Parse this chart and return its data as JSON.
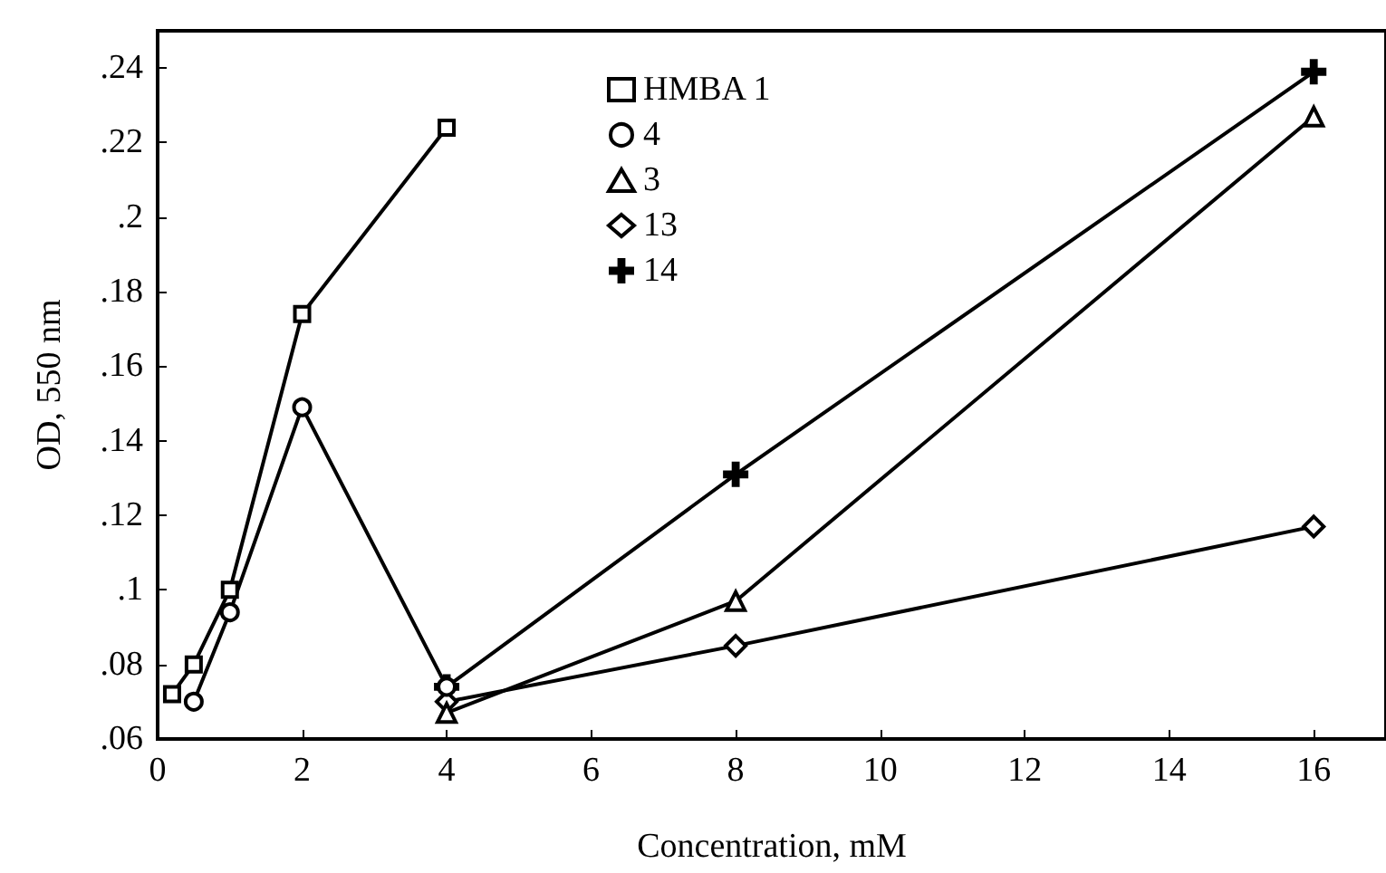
{
  "chart_data": {
    "type": "line",
    "xlabel": "Concentration, mM",
    "ylabel": "OD, 550 nm",
    "xlim": [
      0,
      17
    ],
    "xticks": [
      0,
      2,
      4,
      6,
      8,
      10,
      12,
      14,
      16
    ],
    "ylim": [
      0.06,
      0.25
    ],
    "yticks": [
      {
        "value": 0.06,
        "label": ".06"
      },
      {
        "value": 0.08,
        "label": ".08"
      },
      {
        "value": 0.1,
        "label": ".1"
      },
      {
        "value": 0.12,
        "label": ".12"
      },
      {
        "value": 0.14,
        "label": ".14"
      },
      {
        "value": 0.16,
        "label": ".16"
      },
      {
        "value": 0.18,
        "label": ".18"
      },
      {
        "value": 0.2,
        "label": ".2"
      },
      {
        "value": 0.22,
        "label": ".22"
      },
      {
        "value": 0.24,
        "label": ".24"
      }
    ],
    "grid": false,
    "legend": "top",
    "line_style": "solid",
    "series": [
      {
        "name": "HMBA 1",
        "color": "#000000",
        "marker": "square",
        "x": [
          0.2,
          0.5,
          1,
          2,
          4
        ],
        "values": [
          0.072,
          0.08,
          0.1,
          0.174,
          0.224
        ]
      },
      {
        "name": "4",
        "color": "#000000",
        "marker": "circle",
        "x": [
          0.5,
          1,
          2,
          4
        ],
        "values": [
          0.07,
          0.094,
          0.149,
          0.074
        ]
      },
      {
        "name": "3",
        "color": "#000000",
        "marker": "triangle",
        "x": [
          4,
          8,
          16
        ],
        "values": [
          0.067,
          0.097,
          0.227
        ]
      },
      {
        "name": "13",
        "color": "#000000",
        "marker": "diamond",
        "x": [
          4,
          8,
          16
        ],
        "values": [
          0.07,
          0.085,
          0.117
        ]
      },
      {
        "name": "14",
        "color": "#000000",
        "marker": "cross",
        "x": [
          4,
          8,
          16
        ],
        "values": [
          0.074,
          0.131,
          0.239
        ]
      }
    ]
  }
}
